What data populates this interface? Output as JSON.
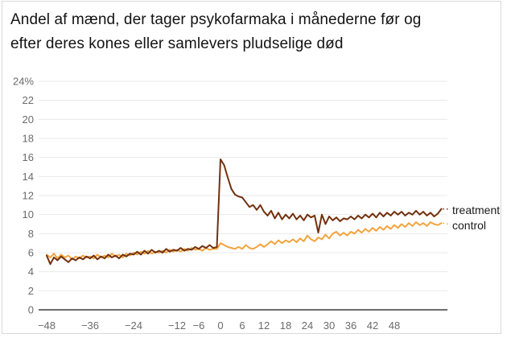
{
  "card": {
    "title_lines": [
      "Andel af mænd, der tager psykofarmaka i månederne før og",
      "efter deres kones eller samlevers pludselige død"
    ]
  },
  "chart_data": {
    "type": "line",
    "title": "Andel af mænd, der tager psykofarmaka i månederne før og efter deres kones eller samlevers pludselige død",
    "xlabel": "",
    "ylabel": "",
    "ylim": [
      0,
      24
    ],
    "ytick_step": 2,
    "ytick_labels": [
      "0",
      "2",
      "4",
      "6",
      "8",
      "10",
      "12",
      "14",
      "16",
      "18",
      "20",
      "22",
      "24%"
    ],
    "x_ticks": [
      {
        "m": -48,
        "label": "−48"
      },
      {
        "m": -36,
        "label": "−36"
      },
      {
        "m": -24,
        "label": "−24"
      },
      {
        "m": -12,
        "label": "−12"
      },
      {
        "m": -6,
        "label": "−6"
      },
      {
        "m": 0,
        "label": "0"
      },
      {
        "m": 6,
        "label": "6"
      },
      {
        "m": 12,
        "label": "12"
      },
      {
        "m": 18,
        "label": "18"
      },
      {
        "m": 24,
        "label": "24"
      },
      {
        "m": 30,
        "label": "30"
      },
      {
        "m": 36,
        "label": "36"
      },
      {
        "m": 42,
        "label": "42"
      },
      {
        "m": 48,
        "label": "48"
      }
    ],
    "x_start_month": -48,
    "x_end_month": 61,
    "grid": true,
    "legend_position": "right-of-line-ends",
    "colors": {
      "grid": "#e9e9e9",
      "axis": "#3d3d3d",
      "tick_text": "#6b6b6b",
      "label_text": "#1a1a1a"
    },
    "series": [
      {
        "name": "treatment",
        "color": "#72300e",
        "values": [
          5.7,
          4.8,
          5.5,
          5.2,
          5.6,
          5.3,
          5.0,
          5.4,
          5.2,
          5.5,
          5.3,
          5.6,
          5.4,
          5.7,
          5.3,
          5.6,
          5.4,
          5.8,
          5.5,
          5.7,
          5.4,
          5.8,
          5.6,
          5.9,
          5.8,
          6.1,
          5.8,
          6.2,
          5.9,
          6.3,
          6.0,
          6.2,
          6.0,
          6.4,
          6.1,
          6.3,
          6.2,
          6.5,
          6.2,
          6.4,
          6.3,
          6.6,
          6.4,
          6.7,
          6.5,
          6.8,
          6.5,
          6.6,
          15.8,
          15.2,
          13.9,
          12.7,
          12.1,
          11.9,
          11.8,
          11.3,
          10.8,
          11.0,
          10.5,
          11.0,
          10.3,
          9.9,
          10.4,
          9.6,
          10.2,
          9.5,
          10.0,
          9.6,
          10.1,
          9.5,
          9.9,
          9.4,
          10.0,
          9.7,
          9.9,
          8.1,
          10.0,
          9.0,
          9.8,
          9.4,
          9.7,
          9.3,
          9.6,
          9.5,
          9.8,
          9.5,
          9.9,
          9.6,
          10.0,
          9.7,
          10.1,
          9.7,
          10.2,
          9.8,
          10.2,
          9.9,
          10.3,
          10.0,
          10.3,
          9.9,
          10.2,
          10.0,
          10.4,
          10.0,
          10.3,
          9.9,
          10.2,
          9.8,
          10.1,
          10.6
        ]
      },
      {
        "name": "control",
        "color": "#f2a43e",
        "values": [
          5.8,
          5.5,
          5.9,
          5.4,
          5.8,
          5.5,
          5.7,
          5.3,
          5.6,
          5.4,
          5.7,
          5.5,
          5.6,
          5.4,
          5.8,
          5.5,
          5.7,
          5.5,
          5.9,
          5.6,
          5.8,
          5.5,
          5.9,
          5.7,
          6.0,
          5.8,
          6.1,
          5.9,
          6.2,
          5.9,
          6.1,
          6.0,
          6.2,
          6.0,
          6.3,
          6.1,
          6.3,
          6.1,
          6.4,
          6.2,
          6.5,
          6.3,
          6.4,
          6.2,
          6.5,
          6.3,
          6.4,
          6.4,
          7.0,
          6.8,
          6.6,
          6.5,
          6.4,
          6.6,
          6.4,
          6.8,
          6.5,
          6.4,
          6.6,
          6.9,
          6.6,
          6.9,
          7.2,
          6.9,
          7.3,
          7.0,
          7.3,
          7.1,
          7.4,
          7.1,
          7.5,
          7.2,
          7.8,
          7.4,
          7.2,
          7.6,
          7.4,
          7.9,
          7.5,
          8.0,
          8.2,
          7.8,
          8.1,
          7.8,
          8.2,
          8.0,
          8.4,
          8.1,
          8.5,
          8.2,
          8.6,
          8.3,
          8.7,
          8.4,
          8.8,
          8.5,
          8.9,
          8.6,
          9.0,
          8.7,
          9.1,
          8.8,
          9.2,
          8.9,
          9.1,
          8.8,
          9.2,
          9.0,
          8.9,
          9.1
        ]
      }
    ]
  }
}
